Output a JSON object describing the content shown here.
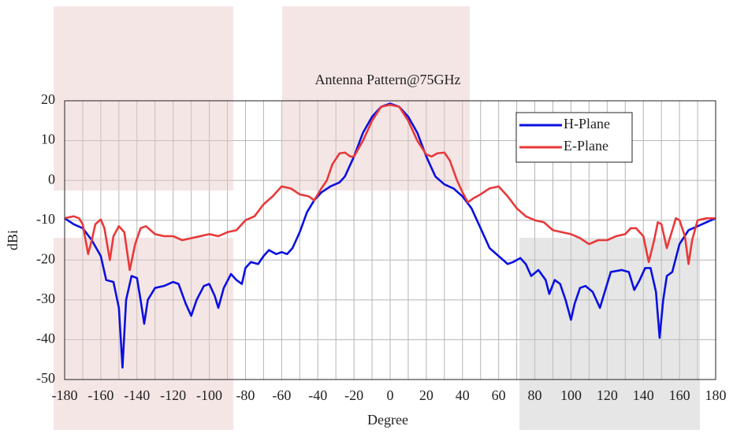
{
  "chart_data": {
    "type": "line",
    "title": "Antenna Pattern@75GHz",
    "x_label": "Degree",
    "y_label": "dBi",
    "xlim": [
      -180,
      180
    ],
    "ylim": [
      -50,
      20
    ],
    "xticks": [
      -180,
      -160,
      -140,
      -120,
      -100,
      -80,
      -60,
      -40,
      -20,
      0,
      20,
      40,
      60,
      80,
      100,
      120,
      140,
      160,
      180
    ],
    "xminor": [
      -170,
      -150,
      -130,
      -110,
      -90,
      -70,
      -50,
      -30,
      -10,
      10,
      30,
      50,
      70,
      90,
      110,
      130,
      150,
      170
    ],
    "yticks": [
      -50,
      -40,
      -30,
      -20,
      -10,
      0,
      10,
      20
    ],
    "grid": true,
    "legend": "upper right",
    "series": [
      {
        "name": "H-Plane",
        "color": "#0a10e0",
        "x": [
          -180,
          -175,
          -170,
          -165,
          -160,
          -157,
          -153,
          -150,
          -148,
          -146,
          -143,
          -140,
          -138,
          -136,
          -134,
          -130,
          -125,
          -120,
          -117,
          -113,
          -110,
          -107,
          -103,
          -100,
          -97,
          -95,
          -92,
          -88,
          -85,
          -82,
          -80,
          -77,
          -73,
          -70,
          -67,
          -63,
          -60,
          -57,
          -54,
          -50,
          -46,
          -42,
          -38,
          -33,
          -28,
          -25,
          -20,
          -15,
          -10,
          -5,
          0,
          5,
          10,
          15,
          20,
          25,
          30,
          35,
          40,
          45,
          50,
          55,
          60,
          65,
          68,
          72,
          75,
          78,
          82,
          86,
          88,
          91,
          94,
          97,
          100,
          102,
          105,
          108,
          112,
          116,
          118,
          122,
          128,
          132,
          135,
          138,
          141,
          144,
          147,
          149,
          151,
          153,
          156,
          160,
          165,
          170,
          175,
          180
        ],
        "values": [
          -9.5,
          -11,
          -12,
          -15,
          -19,
          -25,
          -25.5,
          -32,
          -47,
          -30,
          -24,
          -24.5,
          -30,
          -36,
          -30,
          -27,
          -26.5,
          -25.5,
          -26,
          -31,
          -34,
          -30,
          -26.5,
          -26,
          -29,
          -32,
          -27,
          -23.5,
          -25,
          -26,
          -22,
          -20.5,
          -21,
          -19,
          -17.5,
          -18.5,
          -18,
          -18.5,
          -17,
          -13,
          -8,
          -5,
          -3,
          -1.5,
          -0.5,
          1,
          6,
          12,
          16,
          18.5,
          19.3,
          18.5,
          16,
          12,
          6,
          1,
          -1,
          -2,
          -4,
          -7,
          -12,
          -17,
          -19,
          -21,
          -20.5,
          -19.5,
          -21,
          -24,
          -22.5,
          -25,
          -28.5,
          -25,
          -26,
          -30,
          -35,
          -31,
          -27,
          -26.5,
          -28,
          -32,
          -29,
          -23,
          -22.5,
          -23,
          -27.5,
          -25,
          -22,
          -22,
          -28,
          -39.5,
          -30,
          -24,
          -23,
          -16,
          -12.5,
          -11.5,
          -10.5,
          -9.5
        ]
      },
      {
        "name": "E-Plane",
        "color": "#e8393a",
        "x": [
          -180,
          -175,
          -172,
          -170,
          -167,
          -165,
          -163,
          -160,
          -158,
          -155,
          -153,
          -150,
          -147,
          -144,
          -141,
          -138,
          -135,
          -130,
          -125,
          -120,
          -115,
          -110,
          -105,
          -100,
          -95,
          -90,
          -85,
          -80,
          -75,
          -70,
          -65,
          -60,
          -55,
          -50,
          -45,
          -42,
          -38,
          -35,
          -32,
          -28,
          -25,
          -22,
          -20,
          -15,
          -10,
          -5,
          0,
          5,
          10,
          15,
          20,
          23,
          26,
          30,
          33,
          37,
          40,
          43,
          46,
          50,
          55,
          60,
          65,
          70,
          75,
          80,
          85,
          90,
          95,
          100,
          105,
          110,
          115,
          120,
          125,
          130,
          133,
          136,
          140,
          143,
          146,
          148,
          150,
          153,
          155,
          158,
          160,
          163,
          165,
          167,
          170,
          175,
          180
        ],
        "values": [
          -9.5,
          -9,
          -9.5,
          -11,
          -18.5,
          -15,
          -11,
          -9.8,
          -12,
          -20,
          -14,
          -11.5,
          -13,
          -22.5,
          -16,
          -12,
          -11.5,
          -13.5,
          -14,
          -14,
          -15,
          -14.5,
          -14,
          -13.5,
          -14,
          -13,
          -12.5,
          -10,
          -9,
          -6,
          -4,
          -1.5,
          -2,
          -3.5,
          -4,
          -5,
          -2,
          0,
          4,
          6.8,
          7,
          6,
          6,
          10,
          15,
          18.5,
          19,
          18.5,
          15,
          10,
          6.5,
          6,
          6.8,
          7,
          5,
          0,
          -3,
          -5.5,
          -4.5,
          -3.5,
          -2,
          -1.5,
          -4,
          -7,
          -9,
          -10,
          -10.5,
          -12.5,
          -13,
          -13.5,
          -14.5,
          -16,
          -15,
          -15,
          -14,
          -13.5,
          -12,
          -12,
          -14,
          -20.5,
          -15,
          -10.5,
          -11,
          -17,
          -14,
          -9.5,
          -10,
          -14,
          -21,
          -15,
          -10,
          -9.5,
          -9.5
        ]
      }
    ]
  }
}
